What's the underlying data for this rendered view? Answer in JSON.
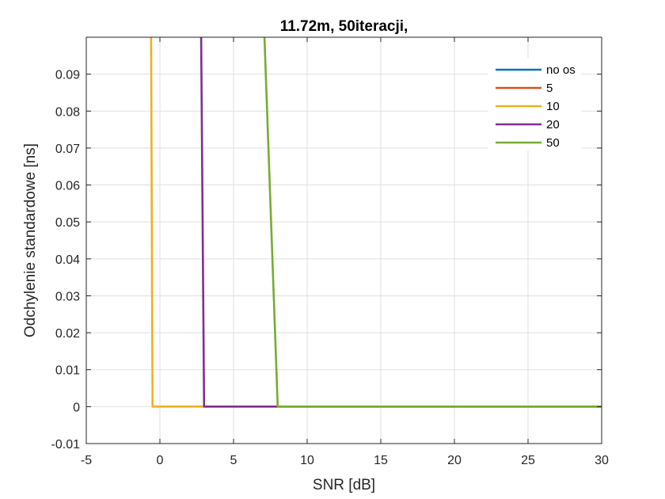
{
  "chart_data": {
    "type": "line",
    "title": "11.72m, 50iteracji,",
    "xlabel": "SNR [dB]",
    "ylabel": "Odchylenie standardowe [ns]",
    "xlim": [
      -5,
      30
    ],
    "ylim": [
      -0.01,
      0.1
    ],
    "xticks": [
      -5,
      0,
      5,
      10,
      15,
      20,
      25,
      30
    ],
    "yticks": [
      -0.01,
      0,
      0.01,
      0.02,
      0.03,
      0.04,
      0.05,
      0.06,
      0.07,
      0.08,
      0.09
    ],
    "ytick_labels": [
      "-0.01",
      "0",
      "0.01",
      "0.02",
      "0.03",
      "0.04",
      "0.05",
      "0.06",
      "0.07",
      "0.08",
      "0.09"
    ],
    "grid": true,
    "legend_position": "top-right",
    "series": [
      {
        "name": "no os",
        "color": "#0072BD",
        "x": [],
        "y": []
      },
      {
        "name": "5",
        "color": "#D95319",
        "x": [],
        "y": []
      },
      {
        "name": "10",
        "color": "#EDB120",
        "x": [
          -0.6,
          -0.5,
          30
        ],
        "y": [
          0.1,
          0,
          0
        ]
      },
      {
        "name": "20",
        "color": "#7E2F8E",
        "x": [
          2.8,
          3.0,
          30
        ],
        "y": [
          0.1,
          0,
          0
        ]
      },
      {
        "name": "50",
        "color": "#77AC30",
        "x": [
          7.1,
          8.0,
          30
        ],
        "y": [
          0.1,
          0,
          0
        ]
      }
    ]
  }
}
